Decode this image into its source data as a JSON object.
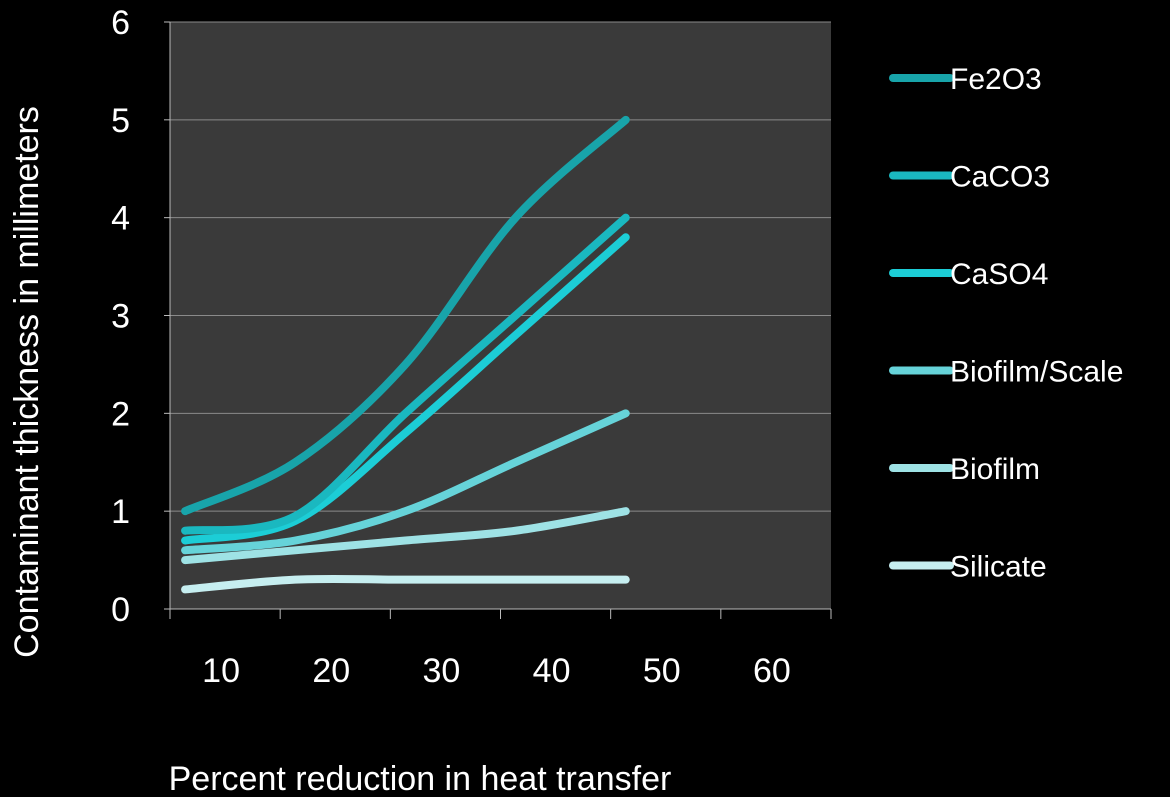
{
  "chart_data": {
    "type": "line",
    "title": "",
    "xlabel": "Percent reduction in heat transfer",
    "ylabel": "Contaminant thickness in millimeters",
    "x_ticks": [
      "10",
      "20",
      "30",
      "40",
      "50",
      "60"
    ],
    "y_ticks": [
      "0",
      "1",
      "2",
      "3",
      "4",
      "5",
      "6"
    ],
    "ylim": [
      0,
      6
    ],
    "grid": true,
    "legend_position": "right",
    "plot_background": "#3a3a3a",
    "page_background": "#000000",
    "series": [
      {
        "name": "Fe2O3",
        "color": "#18a4aa",
        "values": [
          1.0,
          1.5,
          2.5,
          4.0,
          5.0
        ]
      },
      {
        "name": "CaCO3",
        "color": "#1ab8c0",
        "values": [
          0.8,
          0.95,
          2.0,
          3.0,
          4.0
        ]
      },
      {
        "name": "CaSO4",
        "color": "#1ccdd6",
        "values": [
          0.7,
          0.9,
          1.8,
          2.8,
          3.8
        ]
      },
      {
        "name": "Biofilm/Scale",
        "color": "#66d3d9",
        "values": [
          0.6,
          0.7,
          1.0,
          1.5,
          2.0
        ]
      },
      {
        "name": "Biofilm",
        "color": "#9ee2e5",
        "values": [
          0.5,
          0.6,
          0.7,
          0.8,
          1.0
        ]
      },
      {
        "name": "Silicate",
        "color": "#c6eef0",
        "values": [
          0.2,
          0.3,
          0.3,
          0.3,
          0.3
        ]
      }
    ]
  }
}
